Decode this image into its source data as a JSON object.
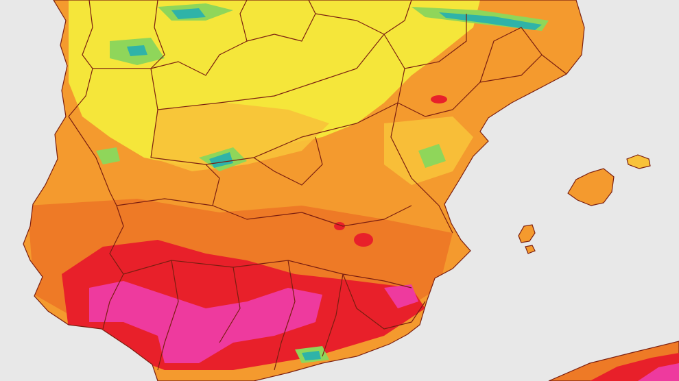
{
  "map": {
    "type": "temperature-heatmap",
    "region": "iberian-peninsula",
    "colors": {
      "sea": "#e8e8e8",
      "border": "#7a1e10",
      "yellow": "#f5e63a",
      "light_orange": "#f8c23a",
      "orange": "#f49a2e",
      "deep_orange": "#ee7a26",
      "red": "#e8202a",
      "magenta": "#ee3a9e",
      "green": "#8fd65a",
      "teal": "#2fb3a8"
    },
    "legend": []
  }
}
